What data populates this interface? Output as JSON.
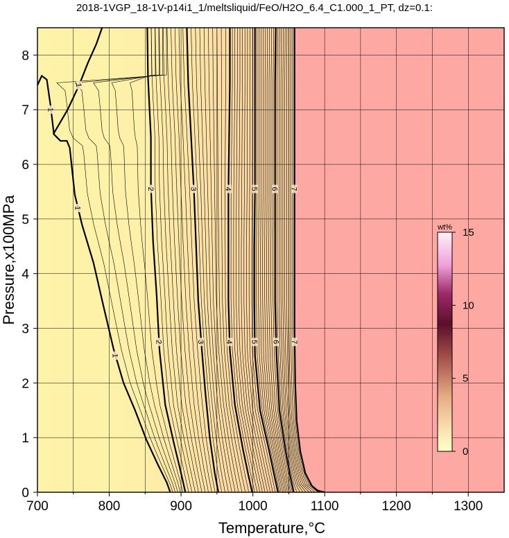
{
  "chart_data": {
    "type": "contour",
    "title": "2018-1VGP_18-1V-p14i1_1/meltsliquid/FeO/H2O_6.4_C1.000_1_PT, dz=0.1:",
    "xlabel": "Temperature,°C",
    "ylabel": "Pressure,x100MPa",
    "xlim": [
      700,
      1350
    ],
    "ylim": [
      0,
      8.5
    ],
    "xticks": [
      700,
      800,
      900,
      1000,
      1100,
      1200,
      1300
    ],
    "yticks": [
      0,
      1,
      2,
      3,
      4,
      5,
      6,
      7,
      8
    ],
    "grid": true,
    "liquid_field_color": "#fea8a3",
    "liquidus_temperature_high_p": 1058,
    "contour_interval": 0.1,
    "labeled_contours": [
      {
        "value": 1,
        "label": "1",
        "points": [
          [
            700,
            7.45
          ],
          [
            706,
            7.62
          ],
          [
            713,
            7.55
          ],
          [
            718,
            7.1
          ],
          [
            723,
            6.55
          ],
          [
            732,
            6.43
          ],
          [
            741,
            6.43
          ],
          [
            745,
            6.3
          ],
          [
            752,
            5.45
          ],
          [
            762,
            4.9
          ],
          [
            778,
            4.2
          ],
          [
            792,
            3.4
          ],
          [
            806,
            2.62
          ],
          [
            820,
            2.0
          ],
          [
            836,
            1.5
          ],
          [
            852,
            0.95
          ],
          [
            868,
            0.5
          ],
          [
            880,
            0.18
          ],
          [
            885,
            0.0
          ]
        ]
      },
      {
        "value": 1,
        "label": "1",
        "points": [
          [
            722,
            6.55
          ],
          [
            742,
            7.0
          ],
          [
            758,
            7.45
          ],
          [
            770,
            7.85
          ],
          [
            782,
            8.2
          ],
          [
            790,
            8.5
          ]
        ]
      },
      {
        "value": 2,
        "label": "2",
        "points": [
          [
            853,
            8.5
          ],
          [
            854,
            7.6
          ],
          [
            858,
            6.5
          ],
          [
            858,
            5.6
          ],
          [
            861,
            4.6
          ],
          [
            866,
            3.6
          ],
          [
            870,
            2.6
          ],
          [
            878,
            1.6
          ],
          [
            890,
            0.9
          ],
          [
            900,
            0.35
          ],
          [
            906,
            0.0
          ]
        ]
      },
      {
        "value": 3,
        "label": "3",
        "points": [
          [
            908,
            8.5
          ],
          [
            910,
            7.5
          ],
          [
            914,
            6.5
          ],
          [
            918,
            5.5
          ],
          [
            921,
            4.5
          ],
          [
            924,
            3.5
          ],
          [
            929,
            2.6
          ],
          [
            934,
            1.8
          ],
          [
            940,
            1.0
          ],
          [
            947,
            0.35
          ],
          [
            952,
            0.0
          ]
        ]
      },
      {
        "value": 4,
        "label": "4",
        "points": [
          [
            968,
            8.5
          ],
          [
            968,
            7.5
          ],
          [
            967,
            6.5
          ],
          [
            966,
            5.5
          ],
          [
            966,
            4.5
          ],
          [
            966,
            3.5
          ],
          [
            968,
            2.6
          ],
          [
            975,
            1.6
          ],
          [
            986,
            0.8
          ],
          [
            994,
            0.3
          ],
          [
            999,
            0.0
          ]
        ]
      },
      {
        "value": 5,
        "label": "5",
        "points": [
          [
            1003,
            8.5
          ],
          [
            1003,
            7.5
          ],
          [
            1003,
            6.5
          ],
          [
            1003,
            5.5
          ],
          [
            1002,
            4.5
          ],
          [
            1002,
            3.5
          ],
          [
            1003,
            2.5
          ],
          [
            1010,
            1.5
          ],
          [
            1022,
            0.8
          ],
          [
            1030,
            0.3
          ],
          [
            1035,
            0.0
          ]
        ]
      },
      {
        "value": 6,
        "label": "6",
        "points": [
          [
            1032,
            8.5
          ],
          [
            1031,
            7.5
          ],
          [
            1031,
            6.5
          ],
          [
            1031,
            5.5
          ],
          [
            1031,
            4.5
          ],
          [
            1031,
            3.5
          ],
          [
            1033,
            2.5
          ],
          [
            1037,
            1.5
          ],
          [
            1045,
            0.8
          ],
          [
            1052,
            0.3
          ],
          [
            1057,
            0.0
          ]
        ]
      },
      {
        "value": 7,
        "label": "7",
        "points": [
          [
            1058,
            8.5
          ],
          [
            1058,
            7.0
          ],
          [
            1058,
            5.5
          ],
          [
            1058,
            4.0
          ],
          [
            1058,
            3.0
          ],
          [
            1059,
            2.0
          ],
          [
            1061,
            1.3
          ],
          [
            1066,
            0.75
          ],
          [
            1073,
            0.35
          ],
          [
            1082,
            0.12
          ],
          [
            1090,
            0.03
          ],
          [
            1100,
            0.0
          ]
        ]
      }
    ],
    "colorbar": {
      "title": "wt%",
      "range": [
        0,
        15
      ],
      "ticks": [
        0,
        5,
        10,
        15
      ],
      "colors": [
        "#ffffcc",
        "#fcd9a8",
        "#e8a87c",
        "#a8504e",
        "#5e0f2e",
        "#a02a6a",
        "#f0a0d8",
        "#fde4f8",
        "#ffffff"
      ]
    }
  }
}
